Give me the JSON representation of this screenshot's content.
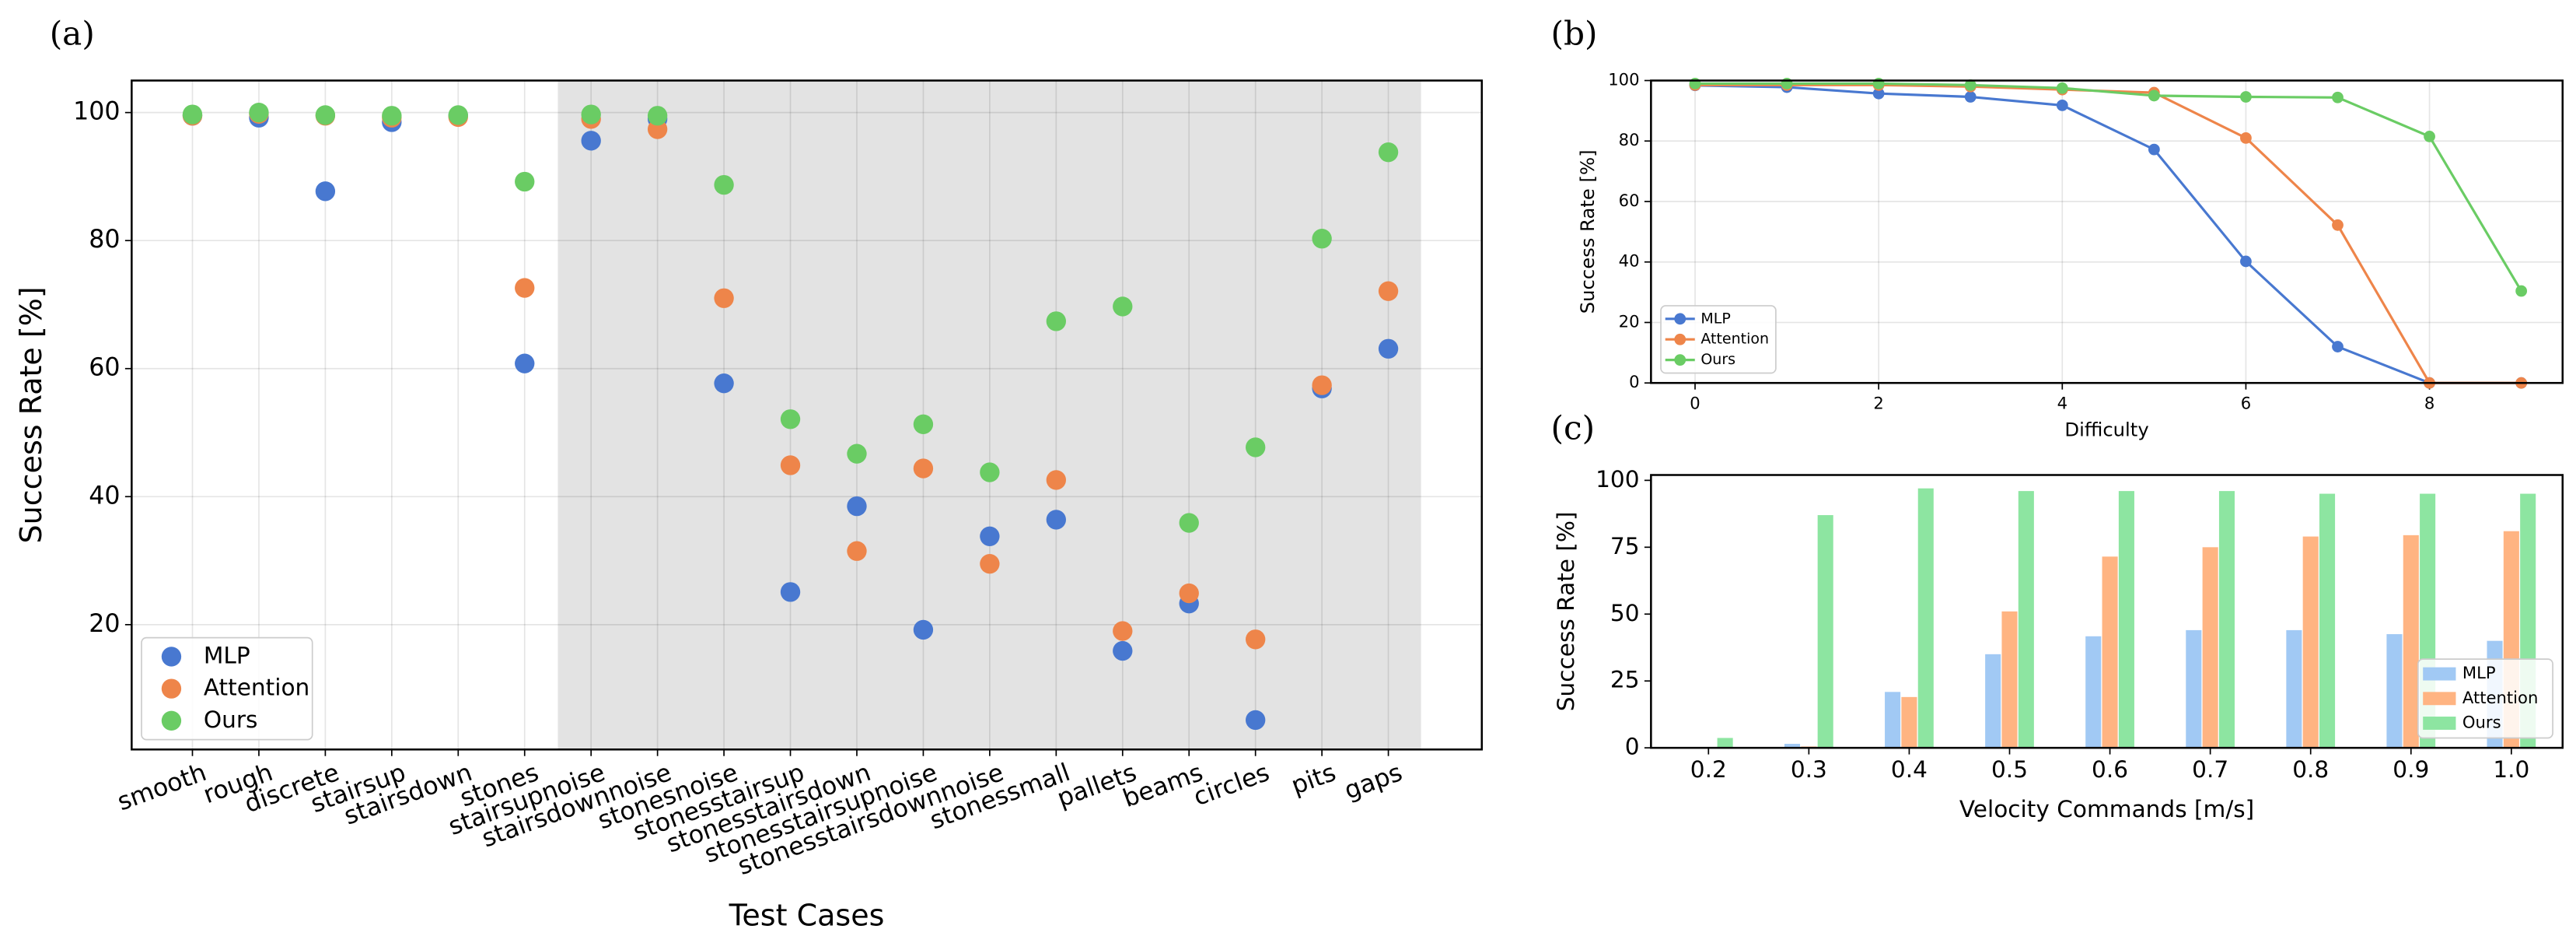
{
  "chart_data": [
    {
      "type": "scatter",
      "label": "(a)",
      "x_label": "Test Cases",
      "y_label": "Success Rate [%]",
      "categories": [
        "smooth",
        "rough",
        "discrete",
        "stairsup",
        "stairsdown",
        "stones",
        "stairsupnoise",
        "stairsdownnoise",
        "stonesnoise",
        "stonesstairsup",
        "stonesstairsdown",
        "stonesstairsupnoise",
        "stonesstairsdownnoise",
        "stonessmall",
        "pallets",
        "beams",
        "circles",
        "pits",
        "gaps"
      ],
      "series": [
        {
          "name": "MLP",
          "color": "#4878d0",
          "values": [
            99.5,
            99.2,
            87.7,
            98.5,
            99.5,
            60.8,
            95.6,
            99.0,
            57.7,
            25.1,
            38.5,
            19.2,
            33.8,
            36.4,
            15.9,
            23.3,
            5.1,
            56.9,
            63.1
          ]
        },
        {
          "name": "Attention",
          "color": "#ee854a",
          "values": [
            99.5,
            99.8,
            99.5,
            99.2,
            99.3,
            72.6,
            99.0,
            97.4,
            71.0,
            44.9,
            31.5,
            44.4,
            29.5,
            42.6,
            19.0,
            24.9,
            17.7,
            57.4,
            72.1
          ]
        },
        {
          "name": "Ours",
          "color": "#6acc64",
          "values": [
            99.7,
            100,
            99.6,
            99.5,
            99.6,
            89.2,
            99.7,
            99.5,
            88.7,
            52.1,
            46.7,
            51.3,
            43.8,
            67.4,
            69.7,
            35.9,
            47.7,
            80.3,
            93.8
          ]
        }
      ],
      "ylim": [
        0.5,
        105
      ],
      "yticks": [
        20,
        40,
        60,
        80,
        100
      ],
      "grid": true,
      "legend": "lower left"
    },
    {
      "type": "line",
      "label": "(b)",
      "x_label": "Difficulty",
      "y_label": "Success Rate [%]",
      "x": [
        0,
        1,
        2,
        3,
        4,
        5,
        6,
        7,
        8,
        9
      ],
      "series": [
        {
          "name": "MLP",
          "color": "#4878d0",
          "values": [
            98.4,
            97.8,
            95.7,
            94.6,
            91.8,
            77.2,
            40.2,
            12.0,
            0,
            0
          ]
        },
        {
          "name": "Attention",
          "color": "#ee854a",
          "values": [
            98.5,
            98.5,
            98.5,
            98,
            97,
            96,
            81,
            52.2,
            0,
            0
          ]
        },
        {
          "name": "Ours",
          "color": "#6acc64",
          "values": [
            99,
            99,
            99,
            98.5,
            97.5,
            95,
            94.6,
            94.4,
            81.5,
            30.4
          ]
        }
      ],
      "xlim": [
        -0.48,
        9.45
      ],
      "xticks": [
        0,
        2,
        4,
        6,
        8
      ],
      "ylim": [
        0,
        100
      ],
      "yticks": [
        0,
        20,
        40,
        60,
        80,
        100
      ],
      "grid": true,
      "legend": "lower left"
    },
    {
      "type": "bar",
      "label": "(c)",
      "x_label": "Velocity Commands [m/s]",
      "y_label": "Success Rate [%]",
      "categories": [
        "0.2",
        "0.3",
        "0.4",
        "0.5",
        "0.6",
        "0.7",
        "0.8",
        "0.9",
        "1.0"
      ],
      "series": [
        {
          "name": "MLP",
          "color": "#a1c9f4",
          "values": [
            0,
            1.5,
            20.9,
            35,
            41.7,
            44,
            44,
            42.5,
            40
          ]
        },
        {
          "name": "Attention",
          "color": "#ffb482",
          "values": [
            0,
            0.5,
            19,
            51,
            71.5,
            75,
            79,
            79.5,
            81
          ]
        },
        {
          "name": "Ours",
          "color": "#8de5a1",
          "values": [
            3.7,
            87,
            97,
            96,
            96,
            96,
            95,
            95,
            95
          ]
        }
      ],
      "ylim": [
        0,
        102
      ],
      "yticks": [
        0,
        25,
        50,
        75,
        100
      ],
      "grid": false,
      "legend": "lower right"
    }
  ]
}
